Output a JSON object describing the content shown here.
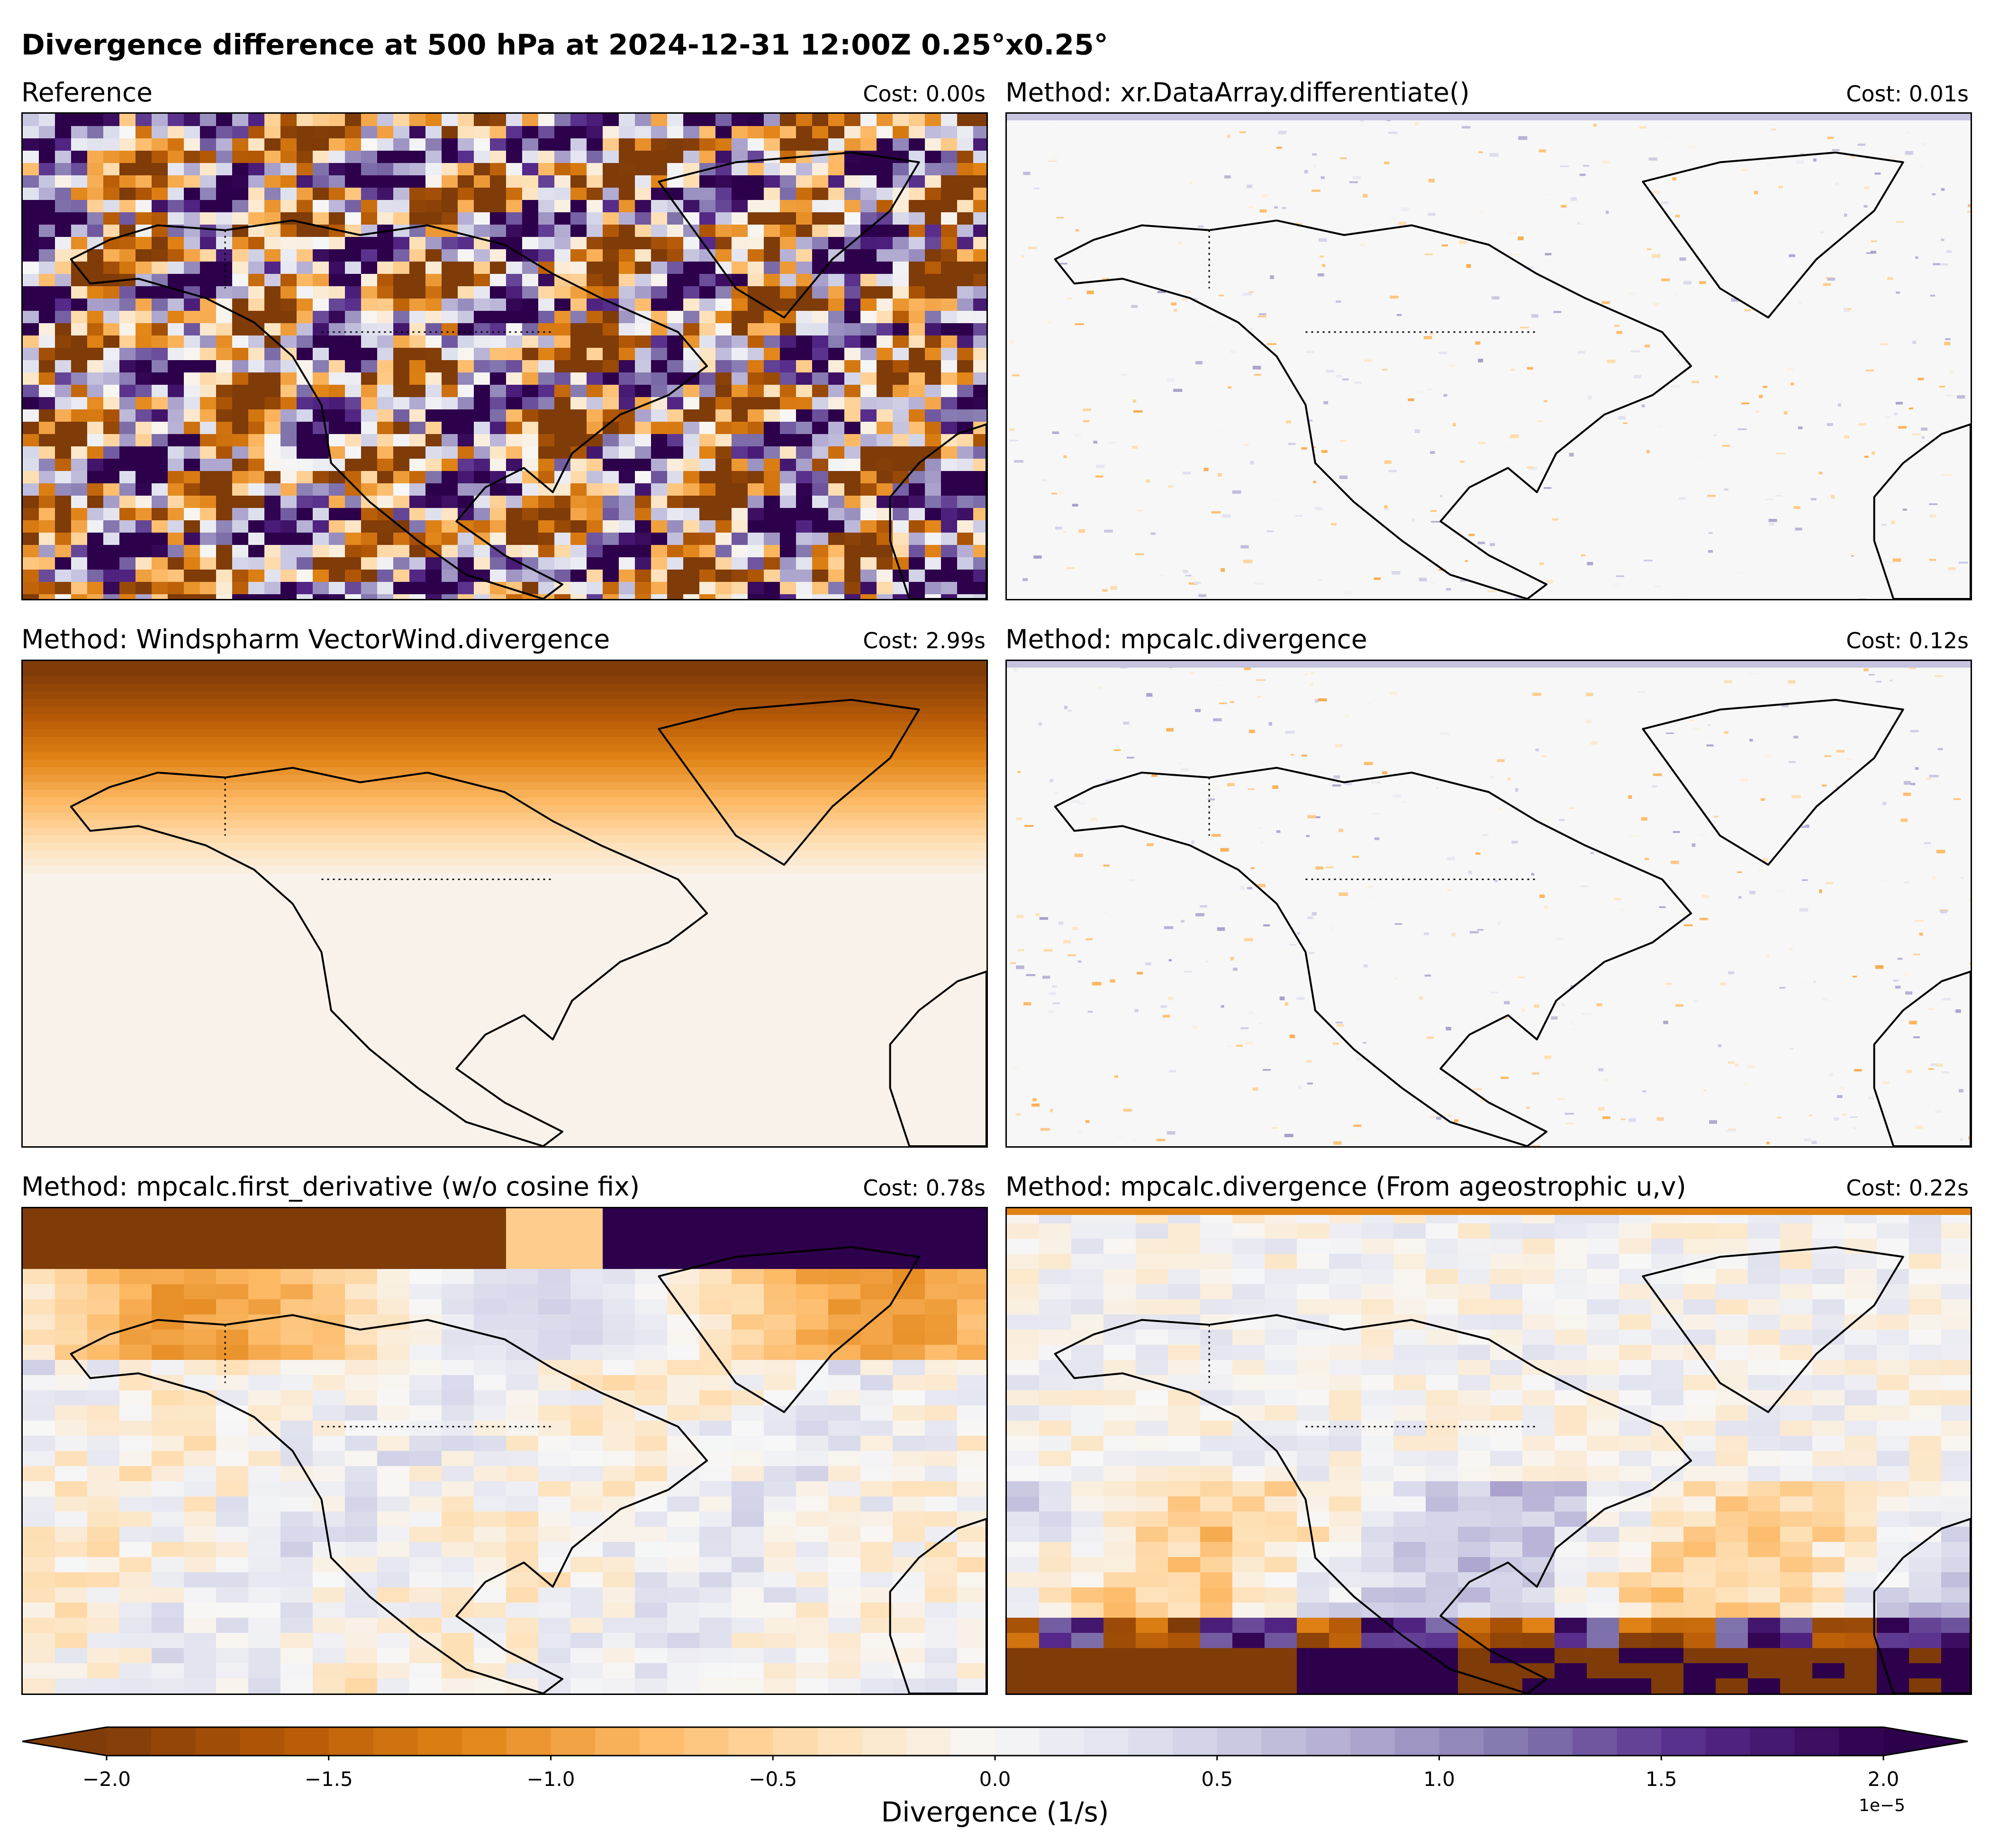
{
  "figure": {
    "title": "Divergence difference at 500 hPa at 2024-12-31 12:00Z 0.25°x0.25°"
  },
  "panels": [
    {
      "title": "Reference",
      "cost": "Cost: 0.00s",
      "pattern": "reference"
    },
    {
      "title": "Method: xr.DataArray.differentiate()",
      "cost": "Cost: 0.01s",
      "pattern": "near-zero"
    },
    {
      "title": "Method: Windspharm VectorWind.divergence",
      "cost": "Cost: 2.99s",
      "pattern": "polar-gradient"
    },
    {
      "title": "Method: mpcalc.divergence",
      "cost": "Cost: 0.12s",
      "pattern": "near-zero"
    },
    {
      "title": "Method: mpcalc.first_derivative (w/o cosine fix)",
      "cost": "Cost: 0.78s",
      "pattern": "latitudinal-bands"
    },
    {
      "title": "Method: mpcalc.divergence (From ageostrophic u,v)",
      "cost": "Cost: 0.22s",
      "pattern": "equatorial-large"
    }
  ],
  "chart_data": {
    "type": "heatmap",
    "colormap": "PuOr",
    "colorbar": {
      "label": "Divergence (1/s)",
      "exponent": "1e−5",
      "vmin": -2.0,
      "vmax": 2.0,
      "ticks": [
        "−2.0",
        "−1.5",
        "−1.0",
        "−0.5",
        "0.0",
        "0.5",
        "1.0",
        "1.5",
        "2.0"
      ],
      "levels": 40,
      "extend": "both",
      "colors": {
        "negative": "#7f3b08",
        "zero": "#f7f7f7",
        "positive": "#2d004b"
      }
    }
  }
}
